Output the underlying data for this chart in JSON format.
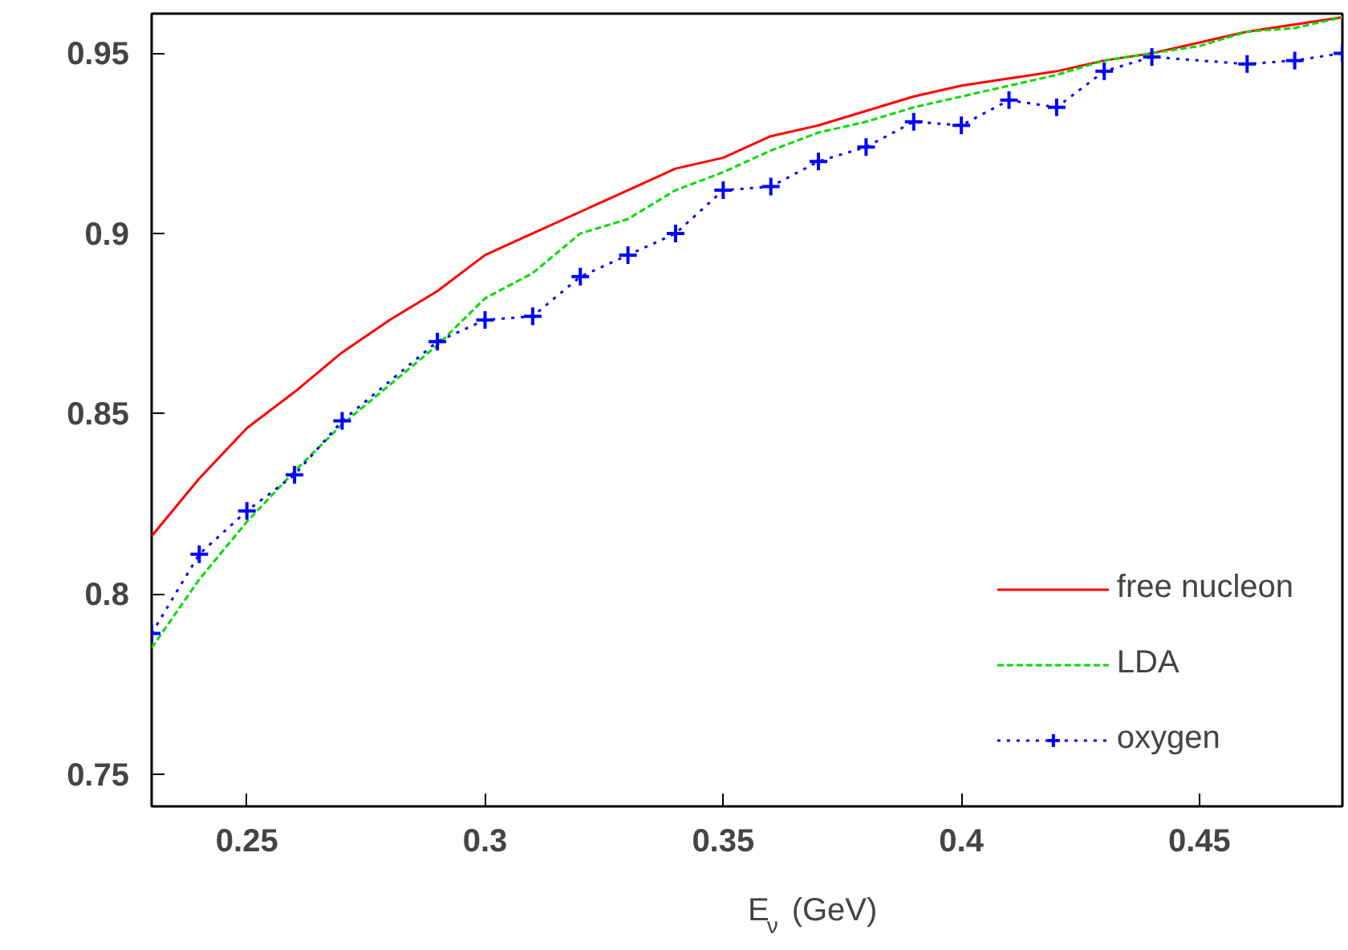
{
  "chart_data": {
    "type": "line",
    "xlabel": "E$_{ν}$ (GeV)",
    "x": [
      0.23,
      0.24,
      0.25,
      0.26,
      0.27,
      0.28,
      0.29,
      0.3,
      0.31,
      0.32,
      0.33,
      0.34,
      0.35,
      0.36,
      0.37,
      0.38,
      0.39,
      0.4,
      0.41,
      0.42,
      0.43,
      0.44,
      0.45,
      0.46,
      0.47,
      0.48
    ],
    "series": [
      {
        "name": "free nucleon",
        "color": "#ff0000",
        "line_style": "solid",
        "marker": "none",
        "values": [
          0.816,
          0.832,
          0.846,
          0.856,
          0.867,
          0.876,
          0.884,
          0.894,
          0.9,
          0.906,
          0.912,
          0.918,
          0.921,
          0.927,
          0.93,
          0.934,
          0.938,
          0.941,
          0.943,
          0.945,
          0.948,
          0.95,
          0.953,
          0.956,
          0.958,
          0.96
        ]
      },
      {
        "name": "LDA",
        "color": "#00dd00",
        "line_style": "dashed",
        "marker": "none",
        "values": [
          0.785,
          0.804,
          0.82,
          0.834,
          0.847,
          0.858,
          0.869,
          0.882,
          0.889,
          0.9,
          0.904,
          0.912,
          0.917,
          0.923,
          0.928,
          0.931,
          0.935,
          0.938,
          0.941,
          0.944,
          0.948,
          0.95,
          0.952,
          0.956,
          0.957,
          0.96
        ]
      },
      {
        "name": "oxygen",
        "color": "#0000ff",
        "line_style": "dotted",
        "marker": "cross",
        "x": [
          0.23,
          0.24,
          0.25,
          0.26,
          0.27,
          0.29,
          0.3,
          0.31,
          0.32,
          0.33,
          0.34,
          0.35,
          0.36,
          0.37,
          0.38,
          0.39,
          0.4,
          0.41,
          0.42,
          0.43,
          0.44,
          0.46,
          0.47,
          0.48
        ],
        "values": [
          0.789,
          0.811,
          0.823,
          0.833,
          0.848,
          0.87,
          0.876,
          0.877,
          0.888,
          0.894,
          0.9,
          0.912,
          0.913,
          0.92,
          0.924,
          0.931,
          0.93,
          0.937,
          0.935,
          0.945,
          0.949,
          0.947,
          0.948,
          0.95
        ]
      }
    ],
    "xlim": [
      0.23,
      0.48
    ],
    "ylim": [
      0.741,
      0.961
    ],
    "xticks": [
      0.25,
      0.3,
      0.35,
      0.4,
      0.45
    ],
    "yticks": [
      0.75,
      0.8,
      0.85,
      0.9,
      0.95
    ],
    "grid": false,
    "legend": "bottom right"
  }
}
